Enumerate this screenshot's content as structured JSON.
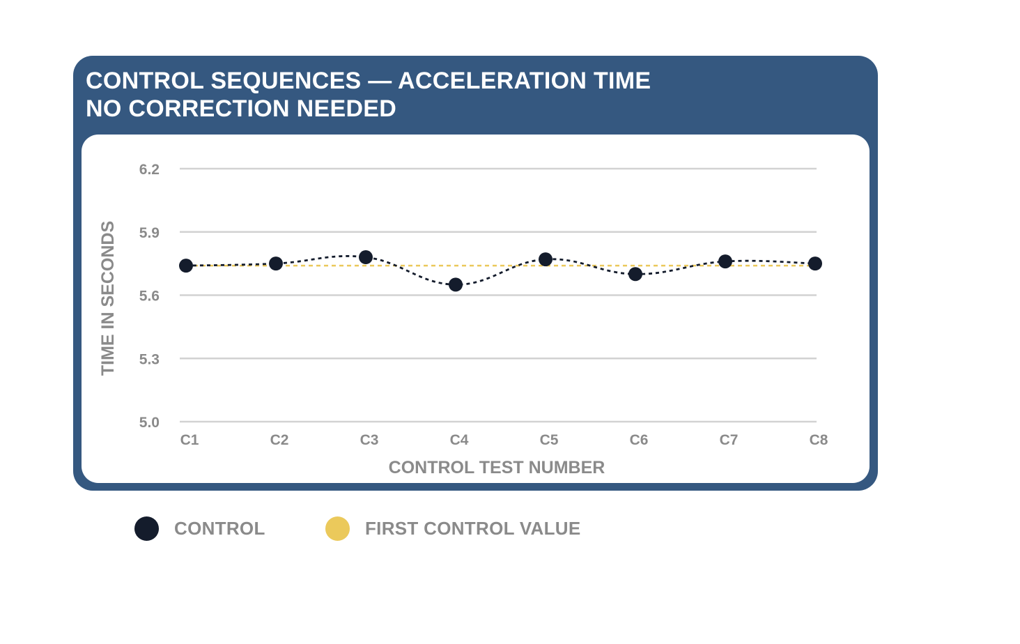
{
  "chart_data": {
    "type": "line",
    "title": "CONTROL SEQUENCES — ACCELERATION TIME",
    "subtitle": "NO CORRECTION NEEDED",
    "xlabel": "CONTROL TEST NUMBER",
    "ylabel": "TIME IN SECONDS",
    "categories": [
      "C1",
      "C2",
      "C3",
      "C4",
      "C5",
      "C6",
      "C7",
      "C8"
    ],
    "ylim": [
      5.0,
      6.2
    ],
    "yticks": [
      "5.0",
      "5.3",
      "5.6",
      "5.9",
      "6.2"
    ],
    "grid": true,
    "legend_position": "bottom-left",
    "series": [
      {
        "name": "CONTROL",
        "values": [
          5.74,
          5.75,
          5.78,
          5.65,
          5.77,
          5.7,
          5.76,
          5.75
        ],
        "color": "#141c2c",
        "style": "dotted-line-with-markers"
      },
      {
        "name": "FIRST CONTROL VALUE",
        "values": [
          5.74,
          5.74,
          5.74,
          5.74,
          5.74,
          5.74,
          5.74,
          5.74
        ],
        "color": "#ebc95b",
        "style": "dashed-reference-line"
      }
    ]
  },
  "colors": {
    "card": "#355880",
    "gridline": "#d2d2d2",
    "axis_text": "#8a8a8a"
  }
}
